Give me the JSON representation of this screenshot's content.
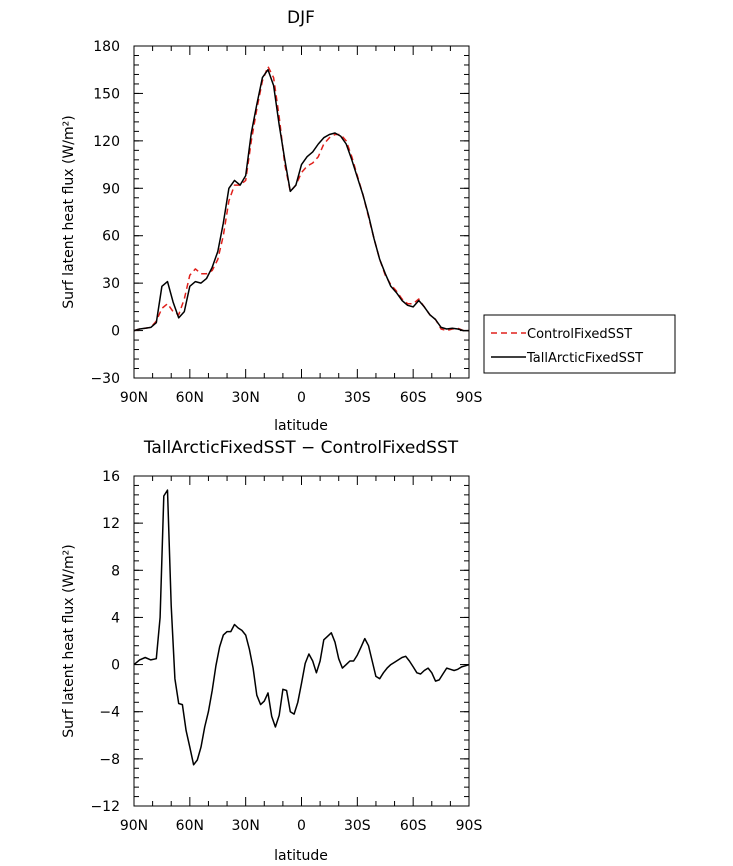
{
  "chart_data": [
    {
      "type": "line",
      "title": "DJF",
      "xlabel": "latitude",
      "ylabel": "Surf latent heat flux (W/m²)",
      "xlim": [
        90,
        -90
      ],
      "ylim": [
        -30,
        180
      ],
      "x_ticks": [
        90,
        60,
        30,
        0,
        -30,
        -60,
        -90
      ],
      "x_tick_labels": [
        "90N",
        "60N",
        "30N",
        "0",
        "30S",
        "60S",
        "90S"
      ],
      "y_ticks": [
        -30,
        0,
        30,
        60,
        90,
        120,
        150,
        180
      ],
      "y_tick_labels": [
        "−30",
        "0",
        "30",
        "60",
        "90",
        "120",
        "150",
        "180"
      ],
      "legend": "right",
      "series": [
        {
          "name": "ControlFixedSST",
          "color": "#e0201b",
          "style": "dashed",
          "x": [
            90,
            87,
            84,
            81,
            78,
            75,
            72,
            69,
            66,
            63,
            60,
            57,
            54,
            51,
            48,
            45,
            42,
            39,
            36,
            33,
            30,
            27,
            24,
            21,
            18,
            15,
            12,
            9,
            6,
            3,
            0,
            -3,
            -6,
            -9,
            -12,
            -15,
            -18,
            -21,
            -24,
            -27,
            -30,
            -33,
            -36,
            -39,
            -42,
            -45,
            -48,
            -51,
            -54,
            -57,
            -60,
            -63,
            -66,
            -69,
            -72,
            -75,
            -78,
            -81,
            -84,
            -87,
            -90
          ],
          "y": [
            0,
            1,
            1.5,
            2,
            6,
            14,
            17,
            12,
            10,
            20,
            35,
            39,
            36,
            36,
            38,
            45,
            60,
            82,
            92,
            92,
            95,
            120,
            140,
            158,
            167,
            160,
            135,
            105,
            88,
            92,
            100,
            104,
            106,
            110,
            118,
            122,
            124,
            124,
            120,
            110,
            98,
            86,
            72,
            58,
            45,
            35,
            29,
            25,
            20,
            17,
            17,
            20,
            15,
            10,
            7,
            1,
            0,
            1,
            1.5,
            0,
            0
          ]
        },
        {
          "name": "TallArcticFixedSST",
          "color": "#000000",
          "style": "solid",
          "x": [
            90,
            87,
            84,
            81,
            78,
            75,
            72,
            69,
            66,
            63,
            60,
            57,
            54,
            51,
            48,
            45,
            42,
            39,
            36,
            33,
            30,
            27,
            24,
            21,
            18,
            15,
            12,
            9,
            6,
            3,
            0,
            -3,
            -6,
            -9,
            -12,
            -15,
            -18,
            -21,
            -24,
            -27,
            -30,
            -33,
            -36,
            -39,
            -42,
            -45,
            -48,
            -51,
            -54,
            -57,
            -60,
            -63,
            -66,
            -69,
            -72,
            -75,
            -78,
            -81,
            -84,
            -87,
            -90
          ],
          "y": [
            0,
            1,
            1.5,
            2,
            5,
            28,
            31,
            18,
            8,
            12,
            28,
            31,
            30,
            33,
            40,
            50,
            68,
            90,
            95,
            92,
            98,
            125,
            143,
            160,
            165,
            155,
            130,
            108,
            88,
            92,
            105,
            110,
            113,
            118,
            122,
            124,
            125,
            123,
            118,
            108,
            97,
            86,
            73,
            58,
            45,
            36,
            28,
            24,
            19,
            16,
            15,
            19,
            15,
            10,
            7,
            2,
            1,
            1.5,
            1,
            0,
            0
          ]
        }
      ]
    },
    {
      "type": "line",
      "title": "TallArcticFixedSST − ControlFixedSST",
      "xlabel": "latitude",
      "ylabel": "Surf latent heat flux (W/m²)",
      "xlim": [
        90,
        -90
      ],
      "ylim": [
        -12,
        16
      ],
      "x_ticks": [
        90,
        60,
        30,
        0,
        -30,
        -60,
        -90
      ],
      "x_tick_labels": [
        "90N",
        "60N",
        "30N",
        "0",
        "30S",
        "60S",
        "90S"
      ],
      "y_ticks": [
        -12,
        -8,
        -4,
        0,
        4,
        8,
        12,
        16
      ],
      "y_tick_labels": [
        "−12",
        "−8",
        "−4",
        "0",
        "4",
        "8",
        "12",
        "16"
      ],
      "series": [
        {
          "color": "#000000",
          "style": "solid",
          "x": [
            90,
            87,
            84,
            81,
            78,
            76,
            74,
            72,
            70,
            68,
            66,
            64,
            62,
            60,
            58,
            56,
            54,
            52,
            50,
            48,
            46,
            44,
            42,
            40,
            38,
            36,
            34,
            32,
            30,
            28,
            26,
            24,
            22,
            20,
            18,
            16,
            14,
            12,
            10,
            8,
            6,
            4,
            2,
            0,
            -2,
            -4,
            -6,
            -8,
            -10,
            -12,
            -14,
            -16,
            -18,
            -20,
            -22,
            -24,
            -26,
            -28,
            -30,
            -32,
            -34,
            -36,
            -38,
            -40,
            -42,
            -44,
            -46,
            -48,
            -50,
            -52,
            -54,
            -56,
            -58,
            -60,
            -62,
            -64,
            -66,
            -68,
            -70,
            -72,
            -74,
            -76,
            -78,
            -80,
            -82,
            -84,
            -86,
            -88,
            -90
          ],
          "y": [
            0,
            0.4,
            0.6,
            0.4,
            0.5,
            4,
            14.3,
            14.8,
            5,
            -1.2,
            -3.3,
            -3.4,
            -5.6,
            -7,
            -8.5,
            -8.1,
            -7,
            -5.3,
            -4,
            -2.2,
            -0.1,
            1.5,
            2.5,
            2.8,
            2.8,
            3.4,
            3.1,
            2.9,
            2.5,
            1.3,
            -0.3,
            -2.6,
            -3.4,
            -3.1,
            -2.4,
            -4.4,
            -5.3,
            -4.3,
            -2.1,
            -2.2,
            -4,
            -4.2,
            -3.2,
            -1.6,
            0.1,
            0.9,
            0.3,
            -0.7,
            0.3,
            2.1,
            2.4,
            2.7,
            1.9,
            0.5,
            -0.3,
            0,
            0.3,
            0.3,
            0.8,
            1.5,
            2.2,
            1.6,
            0.3,
            -1,
            -1.2,
            -0.7,
            -0.3,
            0,
            0.2,
            0.4,
            0.6,
            0.7,
            0.3,
            -0.2,
            -0.7,
            -0.8,
            -0.5,
            -0.3,
            -0.7,
            -1.4,
            -1.3,
            -0.8,
            -0.3,
            -0.4,
            -0.5,
            -0.4,
            -0.2,
            -0.1,
            0
          ]
        }
      ]
    }
  ]
}
